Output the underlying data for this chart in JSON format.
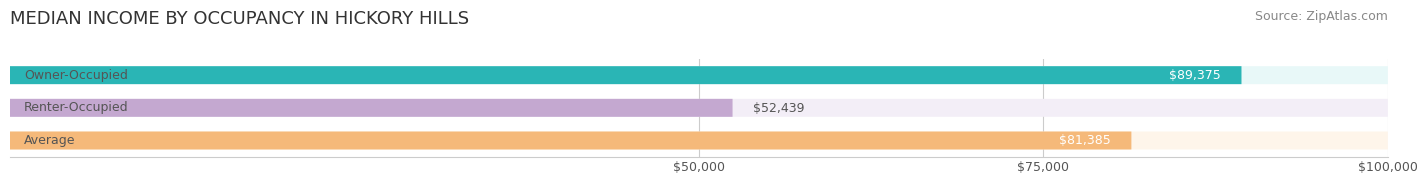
{
  "title": "MEDIAN INCOME BY OCCUPANCY IN HICKORY HILLS",
  "source": "Source: ZipAtlas.com",
  "categories": [
    "Owner-Occupied",
    "Renter-Occupied",
    "Average"
  ],
  "values": [
    89375,
    52439,
    81385
  ],
  "labels": [
    "$89,375",
    "$52,439",
    "$81,385"
  ],
  "bar_colors": [
    "#2ab5b5",
    "#c4a8d0",
    "#f5b97a"
  ],
  "bar_bg_colors": [
    "#e8f8f8",
    "#f3eef7",
    "#fef5ea"
  ],
  "xmin": 0,
  "xmax": 100000,
  "xticks": [
    50000,
    75000,
    100000
  ],
  "xtick_labels": [
    "$50,000",
    "$75,000",
    "$100,000"
  ],
  "title_fontsize": 13,
  "label_fontsize": 9,
  "source_fontsize": 9,
  "bar_height": 0.55,
  "background_color": "#ffffff",
  "label_color_inside": "#ffffff",
  "label_color_outside": "#555555",
  "category_label_color": "#555555"
}
